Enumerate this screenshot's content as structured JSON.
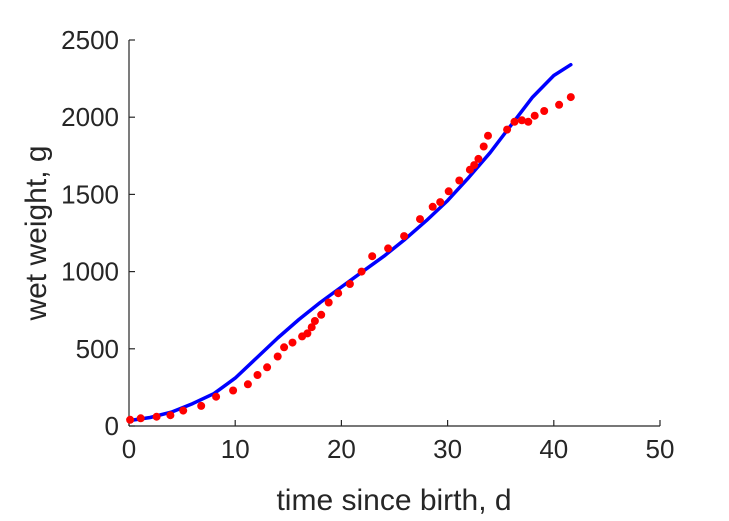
{
  "chart_data": {
    "type": "scatter",
    "xlabel": "time since birth, d",
    "ylabel": "wet weight, g",
    "xlim": [
      0,
      50
    ],
    "ylim": [
      0,
      2500
    ],
    "xticks": [
      0,
      10,
      20,
      30,
      40,
      50
    ],
    "yticks": [
      0,
      500,
      1000,
      1500,
      2000,
      2500
    ],
    "grid": false,
    "series": [
      {
        "kind": "scatter",
        "color": "#ff0000",
        "x": [
          0.1,
          1.1,
          2.6,
          3.9,
          5.1,
          6.8,
          8.2,
          9.8,
          11.2,
          12.1,
          13.0,
          14.0,
          14.6,
          15.4,
          16.3,
          16.8,
          17.2,
          17.5,
          18.1,
          18.8,
          19.7,
          20.8,
          21.9,
          22.9,
          24.4,
          25.9,
          27.4,
          28.6,
          29.3,
          30.1,
          31.1,
          32.1,
          32.5,
          32.9,
          33.4,
          33.8,
          35.6,
          36.3,
          37.0,
          37.6,
          38.2,
          39.1,
          40.5,
          41.6
        ],
        "y": [
          40,
          50,
          60,
          70,
          100,
          130,
          190,
          230,
          270,
          330,
          380,
          450,
          510,
          540,
          580,
          600,
          640,
          680,
          720,
          800,
          860,
          920,
          1000,
          1100,
          1150,
          1230,
          1340,
          1420,
          1450,
          1520,
          1590,
          1660,
          1690,
          1730,
          1810,
          1880,
          1920,
          1970,
          1980,
          1970,
          2010,
          2040,
          2080,
          2130
        ]
      },
      {
        "kind": "line",
        "color": "#0000ff",
        "x": [
          0,
          2,
          4,
          6,
          8,
          10,
          12,
          14,
          16,
          18,
          20,
          22,
          24,
          26,
          28,
          30,
          32,
          34,
          36,
          38,
          40,
          41.6
        ],
        "y": [
          35,
          55,
          90,
          145,
          210,
          310,
          440,
          570,
          690,
          800,
          900,
          1000,
          1100,
          1210,
          1330,
          1460,
          1610,
          1770,
          1950,
          2130,
          2270,
          2340
        ]
      }
    ]
  }
}
